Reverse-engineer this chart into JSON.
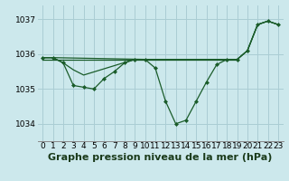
{
  "bg_color": "#cce8ec",
  "grid_color": "#aacdd4",
  "line_color": "#1a5c2a",
  "title": "Graphe pression niveau de la mer (hPa)",
  "xlabel_ticks": [
    0,
    1,
    2,
    3,
    4,
    5,
    6,
    7,
    8,
    9,
    10,
    11,
    12,
    13,
    14,
    15,
    16,
    17,
    18,
    19,
    20,
    21,
    22,
    23
  ],
  "yticks": [
    1034,
    1035,
    1036,
    1037
  ],
  "ylim": [
    1033.5,
    1037.4
  ],
  "xlim": [
    -0.5,
    23.5
  ],
  "line_main": {
    "x": [
      0,
      1,
      2,
      3,
      4,
      5,
      6,
      7,
      8,
      9,
      10,
      11,
      12,
      13,
      14,
      15,
      16,
      17,
      18,
      19,
      20,
      21,
      22,
      23
    ],
    "y": [
      1035.9,
      1035.9,
      1035.75,
      1035.1,
      1035.05,
      1035.0,
      1035.3,
      1035.5,
      1035.75,
      1035.85,
      1035.85,
      1035.6,
      1034.65,
      1034.0,
      1034.1,
      1034.65,
      1035.2,
      1035.7,
      1035.85,
      1035.85,
      1036.1,
      1036.85,
      1036.95,
      1036.85
    ]
  },
  "line_flat": {
    "x": [
      0,
      1,
      2,
      3,
      4,
      5,
      6,
      7,
      8,
      9,
      10,
      11,
      12,
      13,
      14,
      15,
      16,
      17,
      18,
      19
    ],
    "y": [
      1035.85,
      1035.85,
      1035.85,
      1035.85,
      1035.85,
      1035.85,
      1035.85,
      1035.85,
      1035.85,
      1035.85,
      1035.85,
      1035.85,
      1035.85,
      1035.85,
      1035.85,
      1035.85,
      1035.85,
      1035.85,
      1035.85,
      1035.85
    ]
  },
  "line_upper": {
    "x": [
      0,
      1,
      10,
      19,
      20,
      21,
      22,
      23
    ],
    "y": [
      1035.9,
      1035.9,
      1035.85,
      1035.85,
      1036.1,
      1036.85,
      1036.95,
      1036.85
    ]
  },
  "line_mid": {
    "x": [
      0,
      1,
      2,
      3,
      4,
      9,
      10,
      19,
      20,
      21,
      22,
      23
    ],
    "y": [
      1035.9,
      1035.9,
      1035.75,
      1035.55,
      1035.4,
      1035.85,
      1035.85,
      1035.85,
      1036.1,
      1036.85,
      1036.95,
      1036.85
    ]
  },
  "title_fontsize": 8,
  "tick_fontsize": 6.5,
  "marker": "D",
  "marker_size": 2.0,
  "linewidth": 0.9
}
